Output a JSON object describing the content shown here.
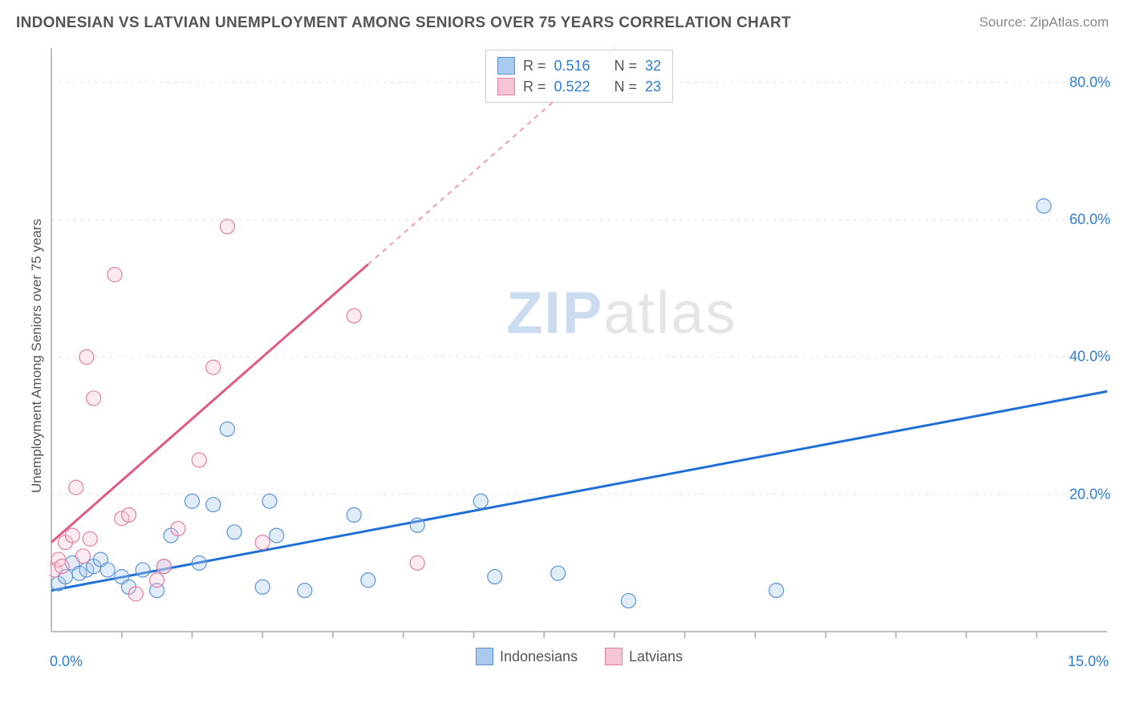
{
  "header": {
    "title": "INDONESIAN VS LATVIAN UNEMPLOYMENT AMONG SENIORS OVER 75 YEARS CORRELATION CHART",
    "source_prefix": "Source: ",
    "source_name": "ZipAtlas.com"
  },
  "watermark": {
    "part1": "ZIP",
    "part2": "atlas"
  },
  "chart": {
    "type": "scatter",
    "ylabel": "Unemployment Among Seniors over 75 years",
    "xlim": [
      0,
      15
    ],
    "ylim": [
      0,
      85
    ],
    "x_ticks_minor": [
      1,
      2,
      3,
      4,
      5,
      6,
      7,
      8,
      9,
      10,
      11,
      12,
      13,
      14
    ],
    "x_tick_labels": {
      "min": "0.0%",
      "max": "15.0%"
    },
    "y_grid": [
      20,
      40,
      60,
      80
    ],
    "y_tick_labels": [
      "20.0%",
      "40.0%",
      "60.0%",
      "80.0%"
    ],
    "grid_color": "#e4e4e4",
    "axis_color": "#aaaaaa",
    "tick_color": "#aaaaaa",
    "background_color": "#ffffff",
    "marker_radius": 9,
    "marker_stroke_width": 1.2,
    "marker_fill_opacity": 0.35,
    "line_width": 3,
    "dash_pattern": "6,6",
    "series": [
      {
        "name": "Indonesians",
        "color_stroke": "#5b93d6",
        "color_fill": "#a9c9ee",
        "line_color": "#1f6fd4",
        "R": "0.516",
        "N": "32",
        "trend": {
          "x1": 0,
          "y1": 6.0,
          "x2": 15,
          "y2": 35.0
        },
        "trend_dashed_from_x": null,
        "points": [
          [
            0.1,
            7
          ],
          [
            0.2,
            8
          ],
          [
            0.3,
            10
          ],
          [
            0.4,
            8.5
          ],
          [
            0.5,
            9
          ],
          [
            0.6,
            9.5
          ],
          [
            0.7,
            10.5
          ],
          [
            0.8,
            9
          ],
          [
            1.0,
            8
          ],
          [
            1.1,
            6.5
          ],
          [
            1.3,
            9
          ],
          [
            1.5,
            6.0
          ],
          [
            1.6,
            9.5
          ],
          [
            1.7,
            14
          ],
          [
            2.0,
            19
          ],
          [
            2.1,
            10
          ],
          [
            2.3,
            18.5
          ],
          [
            2.5,
            29.5
          ],
          [
            2.6,
            14.5
          ],
          [
            3.0,
            6.5
          ],
          [
            3.1,
            19
          ],
          [
            3.2,
            14
          ],
          [
            3.6,
            6.0
          ],
          [
            4.3,
            17
          ],
          [
            4.5,
            7.5
          ],
          [
            5.2,
            15.5
          ],
          [
            6.1,
            19
          ],
          [
            6.3,
            8
          ],
          [
            7.2,
            8.5
          ],
          [
            8.2,
            4.5
          ],
          [
            10.3,
            6.0
          ],
          [
            14.1,
            62
          ]
        ]
      },
      {
        "name": "Latvians",
        "color_stroke": "#e37fa0",
        "color_fill": "#f6c5d4",
        "line_color": "#e05a88",
        "R": "0.522",
        "N": "23",
        "trend": {
          "x1": 0,
          "y1": 13.0,
          "x2": 8.0,
          "y2": 85.0
        },
        "trend_dashed_from_x": 4.5,
        "points": [
          [
            0.05,
            9
          ],
          [
            0.1,
            10.5
          ],
          [
            0.15,
            9.5
          ],
          [
            0.2,
            13
          ],
          [
            0.3,
            14
          ],
          [
            0.35,
            21
          ],
          [
            0.45,
            11
          ],
          [
            0.5,
            40
          ],
          [
            0.55,
            13.5
          ],
          [
            0.6,
            34
          ],
          [
            0.9,
            52
          ],
          [
            1.0,
            16.5
          ],
          [
            1.1,
            17
          ],
          [
            1.2,
            5.5
          ],
          [
            1.5,
            7.5
          ],
          [
            1.6,
            9.5
          ],
          [
            1.8,
            15
          ],
          [
            2.1,
            25
          ],
          [
            2.3,
            38.5
          ],
          [
            2.5,
            59
          ],
          [
            3.0,
            13
          ],
          [
            4.3,
            46
          ],
          [
            5.2,
            10
          ]
        ]
      }
    ]
  },
  "stats_box": {
    "R_label": "R =",
    "N_label": "N ="
  },
  "legend": {
    "items": [
      "Indonesians",
      "Latvians"
    ]
  }
}
